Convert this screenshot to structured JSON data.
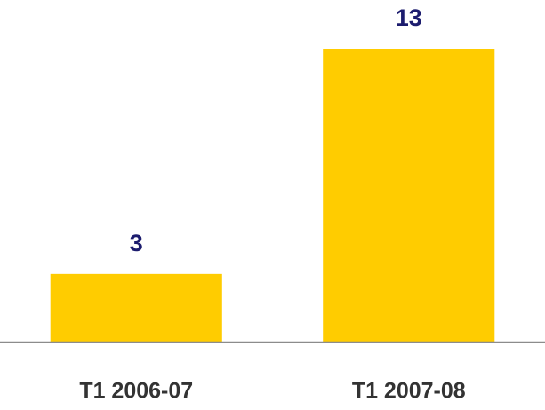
{
  "chart_data": {
    "type": "bar",
    "categories": [
      "T1 2006-07",
      "T1 2007-08"
    ],
    "values": [
      3,
      13
    ],
    "color": "#ffcc00"
  }
}
